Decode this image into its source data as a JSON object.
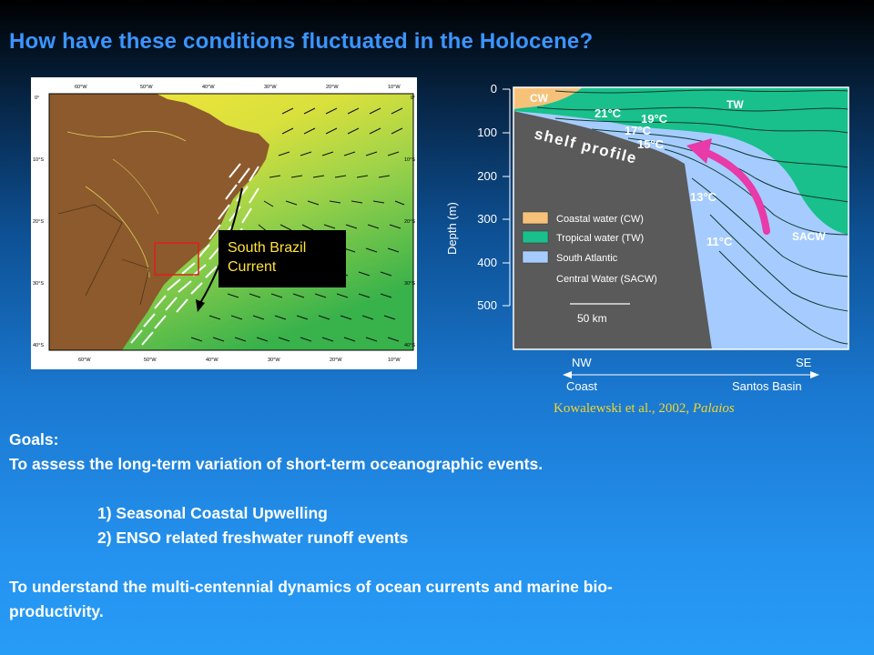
{
  "title": "How have these conditions fluctuated in the Holocene?",
  "map": {
    "lon_labels": [
      "60°W",
      "50°W",
      "40°W",
      "30°W",
      "20°W",
      "10°W"
    ],
    "lat_labels": [
      "0°",
      "10°S",
      "20°S",
      "30°S",
      "40°S"
    ],
    "callout_line1": "South Brazil",
    "callout_line2": "Current",
    "colors": {
      "land": "#8c5a2c",
      "ocean_warm": "#f2e43a",
      "ocean_mid": "#9ed34a",
      "ocean_cool": "#35b04a",
      "highlight": "#e01c1c"
    }
  },
  "section": {
    "y_axis_label": "Depth (m)",
    "y_ticks": [
      "0",
      "100",
      "200",
      "300",
      "400",
      "500"
    ],
    "water_labels": {
      "cw": "CW",
      "tw": "TW",
      "sacw": "SACW"
    },
    "isotherms": [
      "21°C",
      "19°C",
      "17°C",
      "15°C",
      "13°C",
      "11°C"
    ],
    "shelf_label": "shelf profile",
    "legend": [
      {
        "label": "Coastal water (CW)",
        "color": "#f6c27a"
      },
      {
        "label": "Tropical water (TW)",
        "color": "#19c08b"
      },
      {
        "label_line1": "South Atlantic",
        "label_line2": "Central Water (SACW)",
        "color": "#a6ccff"
      }
    ],
    "scale_bar": "50 km",
    "axis_left": "NW",
    "axis_right": "SE",
    "axis_left_sub": "Coast",
    "axis_right_sub": "Santos Basin",
    "colors": {
      "shelf": "#5a5a5a",
      "arrow": "#e83aa8"
    }
  },
  "citation": {
    "authors": "Kowalewski et al., 2002, ",
    "journal": "Palaios"
  },
  "goals": {
    "heading": "Goals:",
    "line1": "To assess the long-term variation of short-term oceanographic events.",
    "item1": "1) Seasonal Coastal Upwelling",
    "item2": "2) ENSO related freshwater runoff events",
    "line2": "To understand the multi-centennial dynamics of ocean currents and marine bio-",
    "line3": "productivity."
  }
}
